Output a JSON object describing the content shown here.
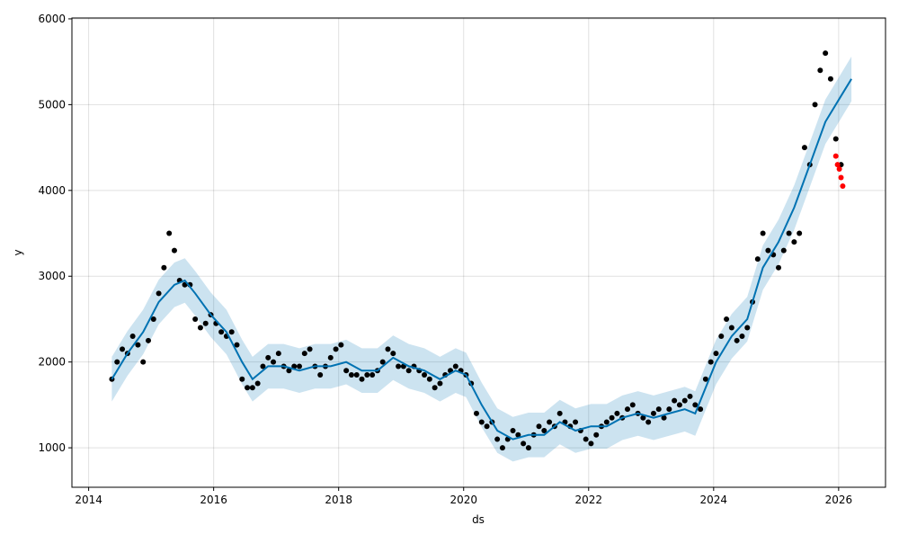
{
  "chart_data": {
    "type": "line",
    "title": "",
    "xlabel": "ds",
    "ylabel": "y",
    "xlim": [
      "2013-09-25",
      "2026-10-01"
    ],
    "ylim": [
      540,
      6010
    ],
    "grid": true,
    "x_ticks": [
      "2014",
      "2016",
      "2018",
      "2020",
      "2022",
      "2024",
      "2026"
    ],
    "y_ticks": [
      "1000",
      "2000",
      "3000",
      "4000",
      "5000",
      "6000"
    ],
    "colors": {
      "actual": "#000000",
      "forecast": "#0072B2",
      "band": "#0072B2",
      "test": "#FF0000"
    },
    "forecast": {
      "band_halfwidth": 260,
      "points": [
        [
          "2014-05",
          1800
        ],
        [
          "2014-08",
          2100
        ],
        [
          "2014-11",
          2350
        ],
        [
          "2015-02",
          2700
        ],
        [
          "2015-05",
          2900
        ],
        [
          "2015-07",
          2950
        ],
        [
          "2015-09",
          2800
        ],
        [
          "2015-12",
          2550
        ],
        [
          "2016-03",
          2350
        ],
        [
          "2016-06",
          2000
        ],
        [
          "2016-08",
          1800
        ],
        [
          "2016-11",
          1950
        ],
        [
          "2017-02",
          1950
        ],
        [
          "2017-05",
          1900
        ],
        [
          "2017-08",
          1950
        ],
        [
          "2017-11",
          1950
        ],
        [
          "2018-02",
          2000
        ],
        [
          "2018-05",
          1900
        ],
        [
          "2018-08",
          1900
        ],
        [
          "2018-11",
          2050
        ],
        [
          "2019-02",
          1950
        ],
        [
          "2019-05",
          1900
        ],
        [
          "2019-08",
          1800
        ],
        [
          "2019-11",
          1900
        ],
        [
          "2020-01",
          1850
        ],
        [
          "2020-04",
          1500
        ],
        [
          "2020-07",
          1200
        ],
        [
          "2020-10",
          1100
        ],
        [
          "2021-01",
          1150
        ],
        [
          "2021-04",
          1150
        ],
        [
          "2021-07",
          1300
        ],
        [
          "2021-10",
          1200
        ],
        [
          "2022-01",
          1250
        ],
        [
          "2022-04",
          1250
        ],
        [
          "2022-07",
          1350
        ],
        [
          "2022-10",
          1400
        ],
        [
          "2023-01",
          1350
        ],
        [
          "2023-04",
          1400
        ],
        [
          "2023-07",
          1450
        ],
        [
          "2023-09",
          1400
        ],
        [
          "2023-11",
          1700
        ],
        [
          "2024-01",
          2000
        ],
        [
          "2024-04",
          2300
        ],
        [
          "2024-07",
          2500
        ],
        [
          "2024-10",
          3100
        ],
        [
          "2025-01",
          3400
        ],
        [
          "2025-04",
          3800
        ],
        [
          "2025-07",
          4300
        ],
        [
          "2025-10",
          4800
        ],
        [
          "2026-01",
          5100
        ],
        [
          "2026-03",
          5300
        ]
      ]
    },
    "actual": [
      [
        "2014-05",
        1800
      ],
      [
        "2014-06",
        2000
      ],
      [
        "2014-07",
        2150
      ],
      [
        "2014-08",
        2100
      ],
      [
        "2014-09",
        2300
      ],
      [
        "2014-10",
        2200
      ],
      [
        "2014-11",
        2000
      ],
      [
        "2014-12",
        2250
      ],
      [
        "2015-01",
        2500
      ],
      [
        "2015-02",
        2800
      ],
      [
        "2015-03",
        3100
      ],
      [
        "2015-04",
        3500
      ],
      [
        "2015-05",
        3300
      ],
      [
        "2015-06",
        2950
      ],
      [
        "2015-07",
        2900
      ],
      [
        "2015-08",
        2900
      ],
      [
        "2015-09",
        2500
      ],
      [
        "2015-10",
        2400
      ],
      [
        "2015-11",
        2450
      ],
      [
        "2015-12",
        2550
      ],
      [
        "2016-01",
        2450
      ],
      [
        "2016-02",
        2350
      ],
      [
        "2016-03",
        2300
      ],
      [
        "2016-04",
        2350
      ],
      [
        "2016-05",
        2200
      ],
      [
        "2016-06",
        1800
      ],
      [
        "2016-07",
        1700
      ],
      [
        "2016-08",
        1700
      ],
      [
        "2016-09",
        1750
      ],
      [
        "2016-10",
        1950
      ],
      [
        "2016-11",
        2050
      ],
      [
        "2016-12",
        2000
      ],
      [
        "2017-01",
        2100
      ],
      [
        "2017-02",
        1950
      ],
      [
        "2017-03",
        1900
      ],
      [
        "2017-04",
        1950
      ],
      [
        "2017-05",
        1950
      ],
      [
        "2017-06",
        2100
      ],
      [
        "2017-07",
        2150
      ],
      [
        "2017-08",
        1950
      ],
      [
        "2017-09",
        1850
      ],
      [
        "2017-10",
        1950
      ],
      [
        "2017-11",
        2050
      ],
      [
        "2017-12",
        2150
      ],
      [
        "2018-01",
        2200
      ],
      [
        "2018-02",
        1900
      ],
      [
        "2018-03",
        1850
      ],
      [
        "2018-04",
        1850
      ],
      [
        "2018-05",
        1800
      ],
      [
        "2018-06",
        1850
      ],
      [
        "2018-07",
        1850
      ],
      [
        "2018-08",
        1900
      ],
      [
        "2018-09",
        2000
      ],
      [
        "2018-10",
        2150
      ],
      [
        "2018-11",
        2100
      ],
      [
        "2018-12",
        1950
      ],
      [
        "2019-01",
        1950
      ],
      [
        "2019-02",
        1900
      ],
      [
        "2019-03",
        1950
      ],
      [
        "2019-04",
        1900
      ],
      [
        "2019-05",
        1850
      ],
      [
        "2019-06",
        1800
      ],
      [
        "2019-07",
        1700
      ],
      [
        "2019-08",
        1750
      ],
      [
        "2019-09",
        1850
      ],
      [
        "2019-10",
        1900
      ],
      [
        "2019-11",
        1950
      ],
      [
        "2019-12",
        1900
      ],
      [
        "2020-01",
        1850
      ],
      [
        "2020-02",
        1750
      ],
      [
        "2020-03",
        1400
      ],
      [
        "2020-04",
        1300
      ],
      [
        "2020-05",
        1250
      ],
      [
        "2020-06",
        1300
      ],
      [
        "2020-07",
        1100
      ],
      [
        "2020-08",
        1000
      ],
      [
        "2020-09",
        1100
      ],
      [
        "2020-10",
        1200
      ],
      [
        "2020-11",
        1150
      ],
      [
        "2020-12",
        1050
      ],
      [
        "2021-01",
        1000
      ],
      [
        "2021-02",
        1150
      ],
      [
        "2021-03",
        1250
      ],
      [
        "2021-04",
        1200
      ],
      [
        "2021-05",
        1300
      ],
      [
        "2021-06",
        1250
      ],
      [
        "2021-07",
        1400
      ],
      [
        "2021-08",
        1300
      ],
      [
        "2021-09",
        1250
      ],
      [
        "2021-10",
        1300
      ],
      [
        "2021-11",
        1200
      ],
      [
        "2021-12",
        1100
      ],
      [
        "2022-01",
        1050
      ],
      [
        "2022-02",
        1150
      ],
      [
        "2022-03",
        1250
      ],
      [
        "2022-04",
        1300
      ],
      [
        "2022-05",
        1350
      ],
      [
        "2022-06",
        1400
      ],
      [
        "2022-07",
        1350
      ],
      [
        "2022-08",
        1450
      ],
      [
        "2022-09",
        1500
      ],
      [
        "2022-10",
        1400
      ],
      [
        "2022-11",
        1350
      ],
      [
        "2022-12",
        1300
      ],
      [
        "2023-01",
        1400
      ],
      [
        "2023-02",
        1450
      ],
      [
        "2023-03",
        1350
      ],
      [
        "2023-04",
        1450
      ],
      [
        "2023-05",
        1550
      ],
      [
        "2023-06",
        1500
      ],
      [
        "2023-07",
        1550
      ],
      [
        "2023-08",
        1600
      ],
      [
        "2023-09",
        1500
      ],
      [
        "2023-10",
        1450
      ],
      [
        "2023-11",
        1800
      ],
      [
        "2023-12",
        2000
      ],
      [
        "2024-01",
        2100
      ],
      [
        "2024-02",
        2300
      ],
      [
        "2024-03",
        2500
      ],
      [
        "2024-04",
        2400
      ],
      [
        "2024-05",
        2250
      ],
      [
        "2024-06",
        2300
      ],
      [
        "2024-07",
        2400
      ],
      [
        "2024-08",
        2700
      ],
      [
        "2024-09",
        3200
      ],
      [
        "2024-10",
        3500
      ],
      [
        "2024-11",
        3300
      ],
      [
        "2024-12",
        3250
      ],
      [
        "2025-01",
        3100
      ],
      [
        "2025-02",
        3300
      ],
      [
        "2025-03",
        3500
      ],
      [
        "2025-04",
        3400
      ],
      [
        "2025-05",
        3500
      ],
      [
        "2025-06",
        4500
      ],
      [
        "2025-07",
        4300
      ],
      [
        "2025-08",
        5000
      ],
      [
        "2025-09",
        5400
      ],
      [
        "2025-10",
        5600
      ],
      [
        "2025-11",
        5300
      ],
      [
        "2025-12",
        4600
      ],
      [
        "2026-01",
        4300
      ]
    ],
    "test": [
      [
        "2025-12-15",
        4400
      ],
      [
        "2025-12-25",
        4300
      ],
      [
        "2026-01-05",
        4250
      ],
      [
        "2026-01-15",
        4150
      ],
      [
        "2026-01-25",
        4050
      ]
    ]
  }
}
